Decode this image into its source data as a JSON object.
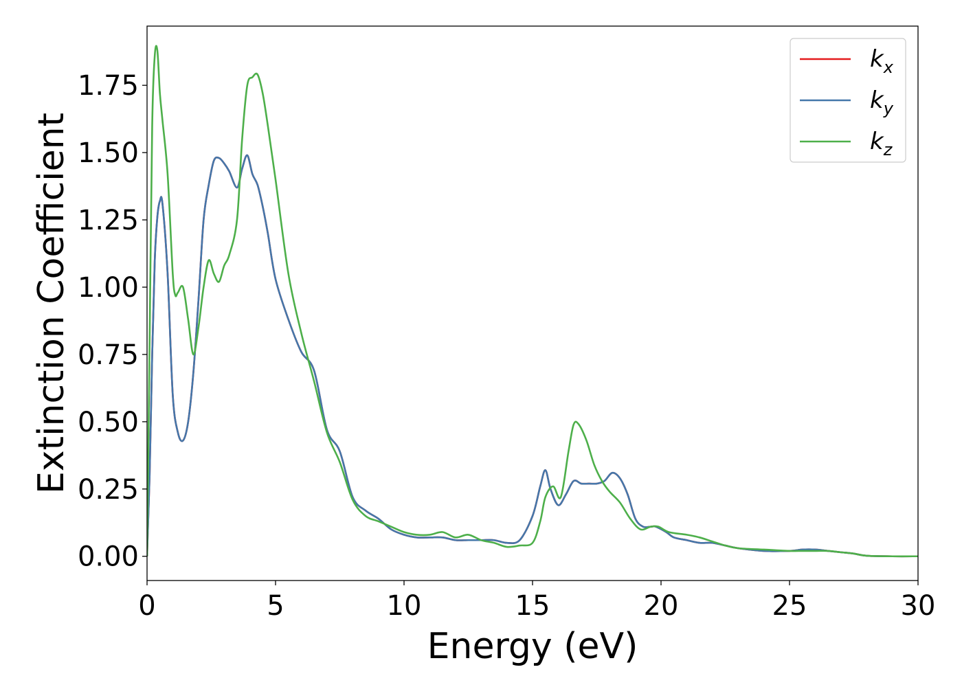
{
  "chart_data": {
    "type": "line",
    "xlabel": "Energy (eV)",
    "ylabel": "Extinction Coefficient",
    "xlim": [
      0,
      30
    ],
    "ylim": [
      -0.09,
      1.97
    ],
    "xticks": [
      0,
      5,
      10,
      15,
      20,
      25,
      30
    ],
    "xtick_labels": [
      "0",
      "5",
      "10",
      "15",
      "20",
      "25",
      "30"
    ],
    "yticks": [
      0,
      0.25,
      0.5,
      0.75,
      1.0,
      1.25,
      1.5,
      1.75
    ],
    "ytick_labels": [
      "0.00",
      "0.25",
      "0.50",
      "0.75",
      "1.00",
      "1.25",
      "1.50",
      "1.75"
    ],
    "grid": false,
    "legend_position": "top-right",
    "series": [
      {
        "name": "kx",
        "legend_label": "k",
        "legend_subscript": "x",
        "color": "#e41a1c",
        "x": [
          0,
          0.1,
          0.2,
          0.3,
          0.4,
          0.5,
          0.6,
          0.8,
          1.0,
          1.2,
          1.4,
          1.6,
          1.8,
          2.0,
          2.2,
          2.4,
          2.6,
          2.8,
          3.0,
          3.2,
          3.5,
          3.7,
          3.9,
          4.1,
          4.3,
          4.5,
          4.7,
          5.0,
          5.5,
          6.0,
          6.5,
          7.0,
          7.5,
          8.0,
          8.5,
          9.0,
          9.5,
          10.0,
          10.5,
          11.0,
          11.5,
          12.0,
          12.5,
          13.0,
          13.5,
          14.0,
          14.5,
          15.0,
          15.3,
          15.5,
          15.7,
          16.0,
          16.3,
          16.6,
          16.9,
          17.2,
          17.5,
          17.8,
          18.1,
          18.4,
          18.7,
          19.0,
          19.3,
          19.6,
          19.8,
          20.2,
          20.5,
          21.0,
          21.5,
          22.0,
          22.5,
          23.0,
          24.0,
          25.0,
          25.5,
          26.0,
          26.5,
          27.0,
          27.5,
          28.0,
          29.0,
          30.0
        ],
        "y": [
          0,
          0.3,
          0.75,
          1.1,
          1.26,
          1.32,
          1.31,
          1.05,
          0.6,
          0.46,
          0.43,
          0.5,
          0.68,
          0.95,
          1.25,
          1.38,
          1.47,
          1.48,
          1.46,
          1.43,
          1.37,
          1.44,
          1.49,
          1.42,
          1.38,
          1.3,
          1.2,
          1.03,
          0.88,
          0.76,
          0.69,
          0.47,
          0.39,
          0.22,
          0.17,
          0.14,
          0.1,
          0.08,
          0.07,
          0.07,
          0.07,
          0.06,
          0.06,
          0.06,
          0.06,
          0.05,
          0.06,
          0.15,
          0.26,
          0.32,
          0.25,
          0.19,
          0.23,
          0.28,
          0.27,
          0.27,
          0.27,
          0.28,
          0.31,
          0.29,
          0.23,
          0.14,
          0.11,
          0.11,
          0.11,
          0.09,
          0.07,
          0.06,
          0.05,
          0.05,
          0.04,
          0.03,
          0.02,
          0.02,
          0.025,
          0.025,
          0.02,
          0.015,
          0.01,
          0.002,
          0.0,
          0.0
        ]
      },
      {
        "name": "ky",
        "legend_label": "k",
        "legend_subscript": "y",
        "color": "#4477aa",
        "x": [
          0,
          0.1,
          0.2,
          0.3,
          0.4,
          0.5,
          0.6,
          0.8,
          1.0,
          1.2,
          1.4,
          1.6,
          1.8,
          2.0,
          2.2,
          2.4,
          2.6,
          2.8,
          3.0,
          3.2,
          3.5,
          3.7,
          3.9,
          4.1,
          4.3,
          4.5,
          4.7,
          5.0,
          5.5,
          6.0,
          6.5,
          7.0,
          7.5,
          8.0,
          8.5,
          9.0,
          9.5,
          10.0,
          10.5,
          11.0,
          11.5,
          12.0,
          12.5,
          13.0,
          13.5,
          14.0,
          14.5,
          15.0,
          15.3,
          15.5,
          15.7,
          16.0,
          16.3,
          16.6,
          16.9,
          17.2,
          17.5,
          17.8,
          18.1,
          18.4,
          18.7,
          19.0,
          19.3,
          19.6,
          19.8,
          20.2,
          20.5,
          21.0,
          21.5,
          22.0,
          22.5,
          23.0,
          24.0,
          25.0,
          25.5,
          26.0,
          26.5,
          27.0,
          27.5,
          28.0,
          29.0,
          30.0
        ],
        "y": [
          0,
          0.3,
          0.75,
          1.1,
          1.26,
          1.32,
          1.31,
          1.05,
          0.6,
          0.46,
          0.43,
          0.5,
          0.68,
          0.95,
          1.25,
          1.38,
          1.47,
          1.48,
          1.46,
          1.43,
          1.37,
          1.44,
          1.49,
          1.42,
          1.38,
          1.3,
          1.2,
          1.03,
          0.88,
          0.76,
          0.69,
          0.47,
          0.39,
          0.22,
          0.17,
          0.14,
          0.1,
          0.08,
          0.07,
          0.07,
          0.07,
          0.06,
          0.06,
          0.06,
          0.06,
          0.05,
          0.06,
          0.15,
          0.26,
          0.32,
          0.25,
          0.19,
          0.23,
          0.28,
          0.27,
          0.27,
          0.27,
          0.28,
          0.31,
          0.29,
          0.23,
          0.14,
          0.11,
          0.11,
          0.11,
          0.09,
          0.07,
          0.06,
          0.05,
          0.05,
          0.04,
          0.03,
          0.02,
          0.02,
          0.025,
          0.025,
          0.02,
          0.015,
          0.01,
          0.002,
          0.0,
          0.0
        ]
      },
      {
        "name": "kz",
        "legend_label": "k",
        "legend_subscript": "z",
        "color": "#4daf4a",
        "x": [
          0,
          0.1,
          0.2,
          0.3,
          0.4,
          0.5,
          0.6,
          0.8,
          1.0,
          1.1,
          1.2,
          1.4,
          1.6,
          1.8,
          2.0,
          2.2,
          2.4,
          2.6,
          2.8,
          3.0,
          3.2,
          3.5,
          3.7,
          3.9,
          4.1,
          4.3,
          4.5,
          4.7,
          5.0,
          5.5,
          6.0,
          6.5,
          7.0,
          7.5,
          8.0,
          8.5,
          9.0,
          9.5,
          10.0,
          10.5,
          11.0,
          11.5,
          12.0,
          12.5,
          13.0,
          13.5,
          14.0,
          14.5,
          15.0,
          15.3,
          15.5,
          15.8,
          16.1,
          16.4,
          16.6,
          16.8,
          17.1,
          17.4,
          17.7,
          18.0,
          18.4,
          18.8,
          19.2,
          19.6,
          19.9,
          20.3,
          21.0,
          21.5,
          22.0,
          22.5,
          23.0,
          24.0,
          25.0,
          25.5,
          26.0,
          26.5,
          27.0,
          27.5,
          28.0,
          29.0,
          30.0
        ],
        "y": [
          0,
          0.8,
          1.6,
          1.86,
          1.88,
          1.72,
          1.62,
          1.42,
          1.05,
          0.97,
          0.98,
          1.0,
          0.88,
          0.75,
          0.85,
          1.0,
          1.1,
          1.05,
          1.02,
          1.08,
          1.12,
          1.25,
          1.55,
          1.75,
          1.78,
          1.79,
          1.72,
          1.6,
          1.4,
          1.05,
          0.83,
          0.65,
          0.46,
          0.35,
          0.21,
          0.15,
          0.13,
          0.11,
          0.09,
          0.08,
          0.08,
          0.09,
          0.07,
          0.08,
          0.06,
          0.05,
          0.035,
          0.04,
          0.05,
          0.13,
          0.22,
          0.26,
          0.22,
          0.39,
          0.49,
          0.49,
          0.43,
          0.34,
          0.28,
          0.24,
          0.2,
          0.14,
          0.1,
          0.11,
          0.11,
          0.09,
          0.08,
          0.07,
          0.055,
          0.04,
          0.03,
          0.025,
          0.02,
          0.02,
          0.02,
          0.02,
          0.015,
          0.01,
          0.002,
          0.0,
          0.0
        ]
      }
    ]
  }
}
